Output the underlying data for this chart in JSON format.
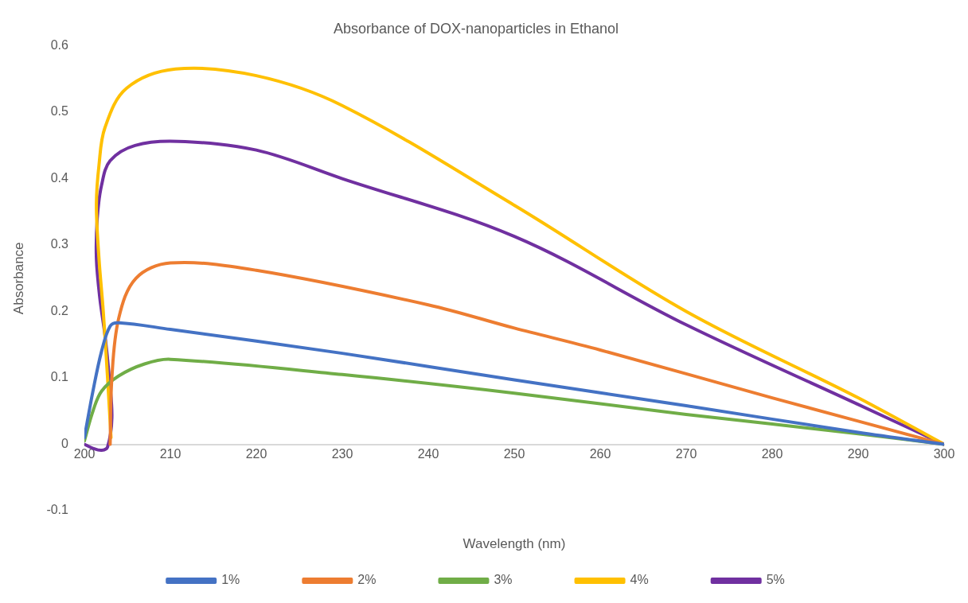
{
  "chart_data": {
    "type": "line",
    "title": "Absorbance of DOX-nanoparticles in Ethanol",
    "xlabel": "Wavelength (nm)",
    "ylabel": "Absorbance",
    "xlim": [
      200,
      300
    ],
    "xticks": [
      200,
      210,
      220,
      230,
      240,
      250,
      260,
      270,
      280,
      290,
      300
    ],
    "ylim": [
      -0.1,
      0.6
    ],
    "yticks": [
      -0.1,
      0,
      0.1,
      0.2,
      0.3,
      0.4,
      0.5,
      0.6
    ],
    "grid": false,
    "legend": "bottom",
    "marker": "none",
    "line_style": "solid",
    "series": [
      {
        "name": "1%",
        "color": "#4472c4",
        "x": [
          200,
          201,
          202,
          203,
          204,
          210,
          230,
          250,
          270,
          290,
          300
        ],
        "values": [
          0.01,
          0.08,
          0.14,
          0.178,
          0.183,
          0.173,
          0.137,
          0.097,
          0.058,
          0.018,
          0
        ]
      },
      {
        "name": "2%",
        "color": "#ed7d31",
        "x": [
          203,
          203.2,
          204,
          206,
          210,
          220,
          240,
          250,
          260,
          280,
          300
        ],
        "values": [
          0,
          0.1,
          0.19,
          0.25,
          0.273,
          0.262,
          0.21,
          0.175,
          0.142,
          0.07,
          0
        ]
      },
      {
        "name": "3%",
        "color": "#70ad47",
        "x": [
          200,
          201,
          202,
          204,
          207,
          210,
          230,
          250,
          270,
          290,
          300
        ],
        "values": [
          0.005,
          0.05,
          0.08,
          0.103,
          0.121,
          0.128,
          0.105,
          0.077,
          0.045,
          0.016,
          0
        ]
      },
      {
        "name": "4%",
        "color": "#ffc000",
        "x": [
          203.1,
          202.7,
          202.2,
          201.7,
          201.4,
          201.7,
          202.4,
          204.9,
          210.6,
          220,
          230,
          250,
          270,
          290,
          300
        ],
        "values": [
          0.01,
          0.1,
          0.2,
          0.28,
          0.36,
          0.42,
          0.477,
          0.536,
          0.565,
          0.555,
          0.51,
          0.36,
          0.2,
          0.07,
          0
        ]
      },
      {
        "name": "5%",
        "color": "#7030a0",
        "x": [
          200,
          201,
          202,
          202.7,
          203.2,
          202.9,
          202.4,
          201.8,
          201.4,
          201.5,
          202,
          203,
          205.9,
          210.9,
          220,
          230,
          250,
          270,
          290,
          300
        ],
        "values": [
          0,
          -0.006,
          -0.009,
          -0.004,
          0.04,
          0.1,
          0.164,
          0.22,
          0.28,
          0.34,
          0.39,
          0.427,
          0.45,
          0.456,
          0.443,
          0.4,
          0.313,
          0.18,
          0.06,
          0
        ]
      }
    ]
  }
}
